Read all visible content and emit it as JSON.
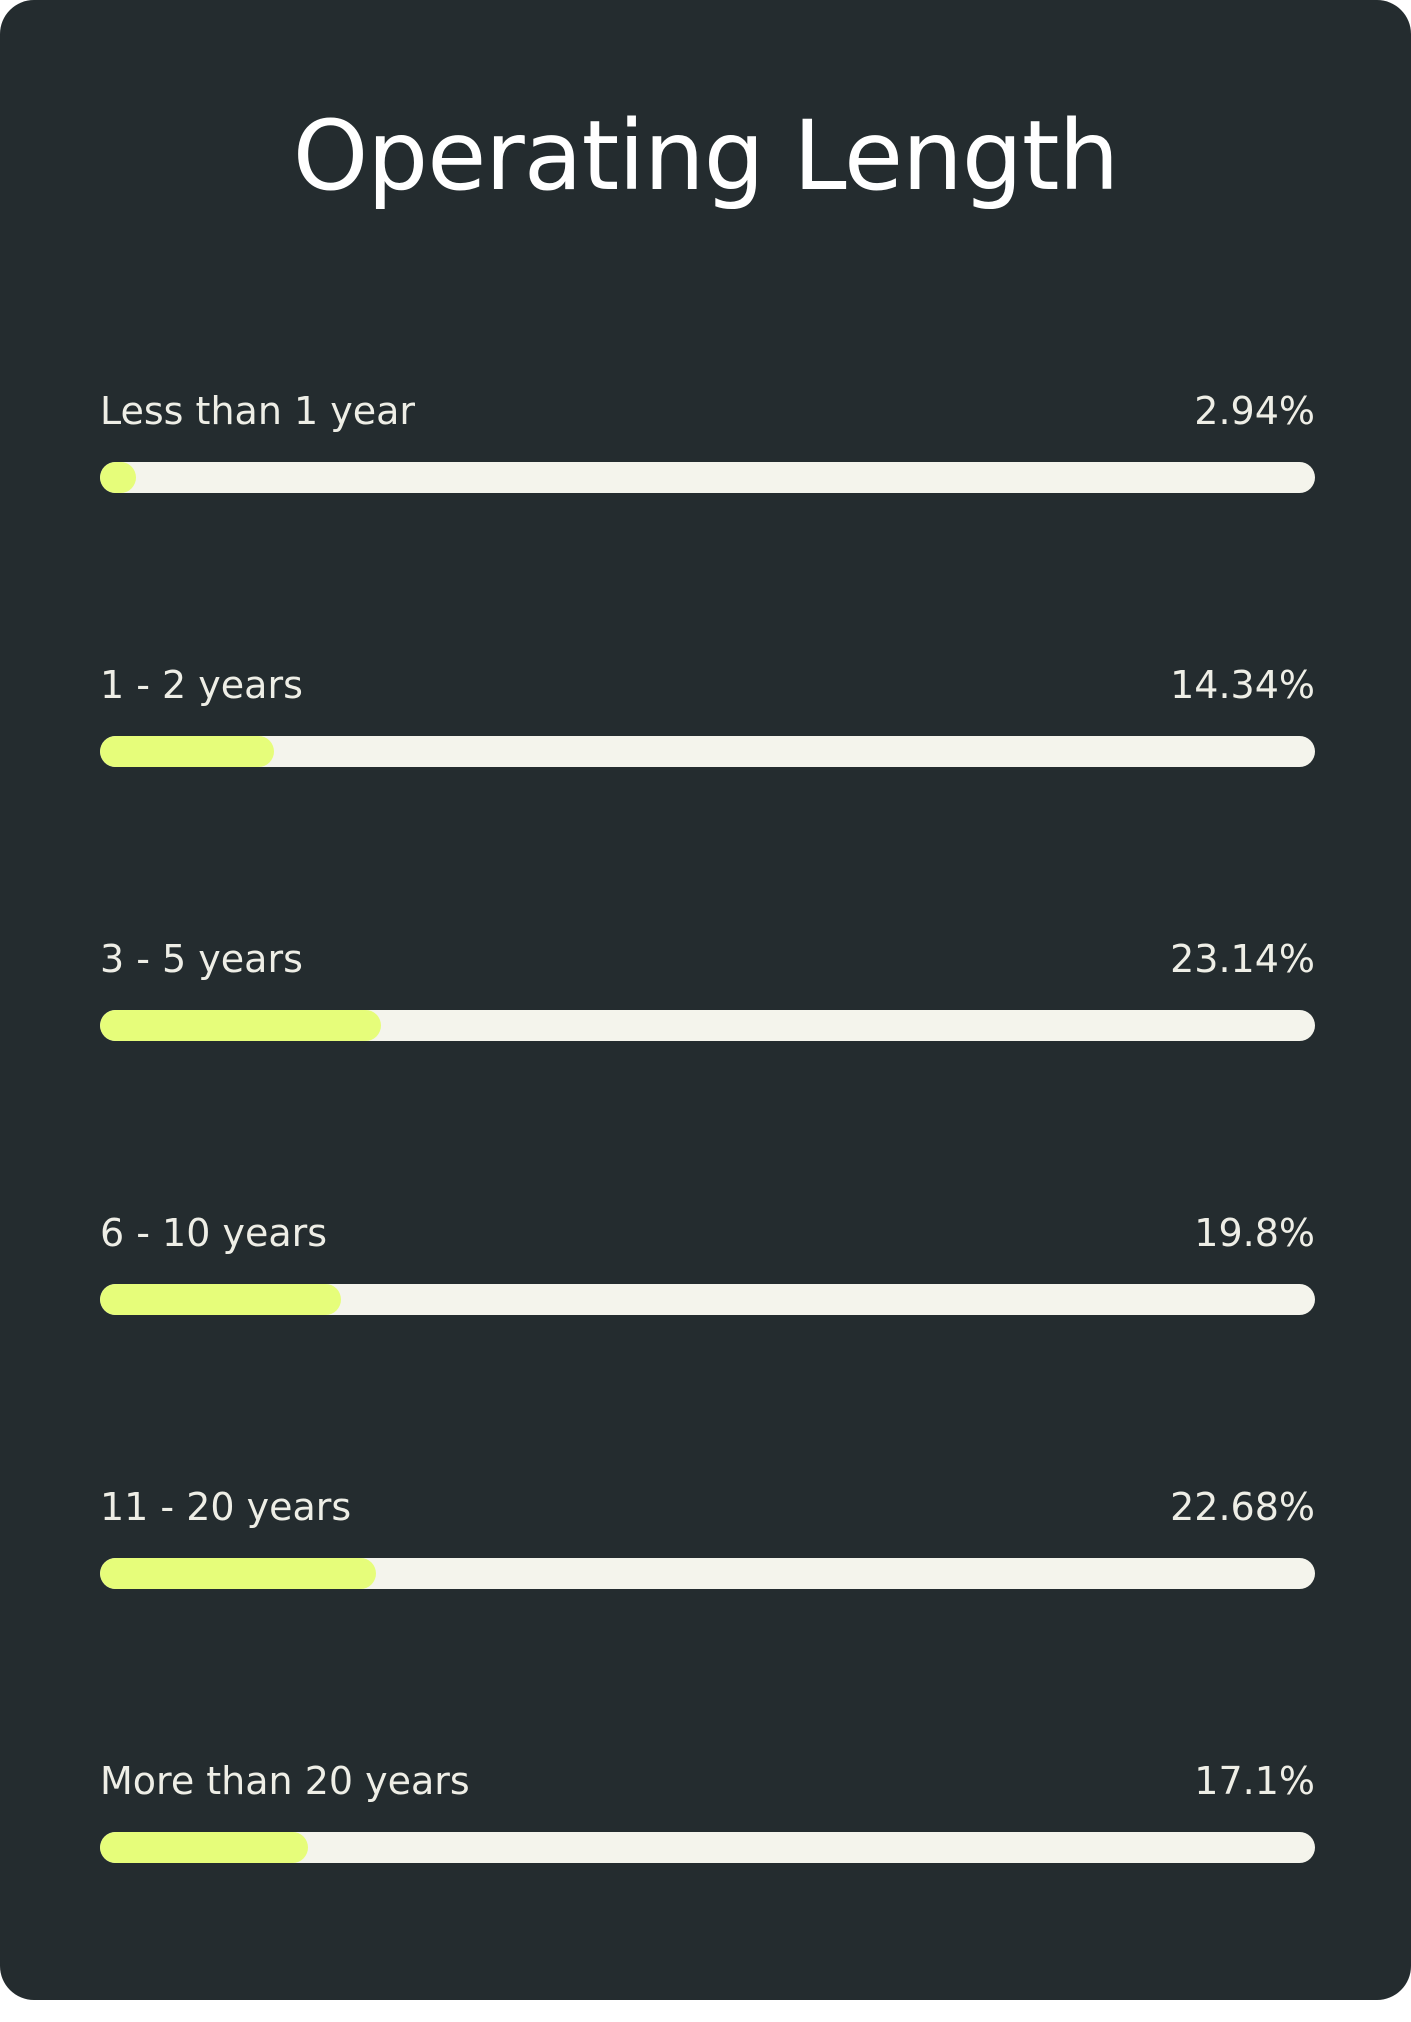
{
  "title": "Operating Length",
  "colors": {
    "background": "#242c2f",
    "track": "#f4f4ec",
    "fill": "#e6fd7a",
    "text": "#eeeee6"
  },
  "chart_data": {
    "type": "bar",
    "orientation": "horizontal",
    "title": "Operating Length",
    "categories": [
      "Less than 1 year",
      "1 - 2 years",
      "3 - 5 years",
      "6 - 10 years",
      "11 - 20 years",
      "More than 20 years"
    ],
    "values": [
      2.94,
      14.34,
      23.14,
      19.8,
      22.68,
      17.1
    ],
    "value_labels": [
      "2.94%",
      "14.34%",
      "23.14%",
      "19.8%",
      "22.68%",
      "17.1%"
    ],
    "unit": "%",
    "xlim": [
      0,
      100
    ],
    "grid": false,
    "legend": "none"
  }
}
